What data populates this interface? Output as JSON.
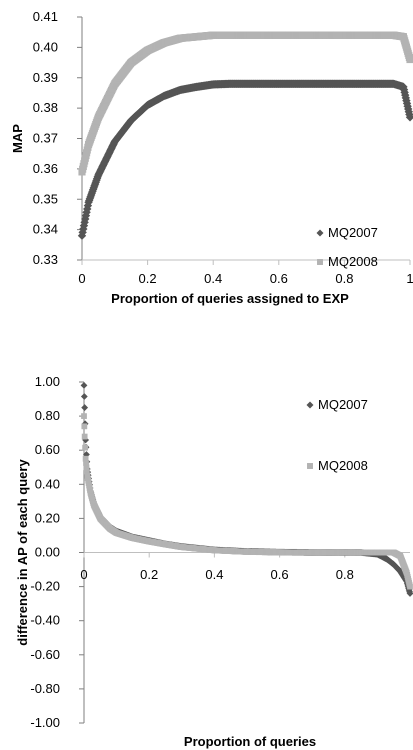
{
  "chart_data": [
    {
      "type": "line",
      "title": "",
      "xlabel": "Proportion of queries assigned to EXP",
      "ylabel": "MAP",
      "xlim": [
        0,
        1
      ],
      "ylim": [
        0.33,
        0.41
      ],
      "xticks": [
        "0",
        "0.2",
        "0.4",
        "0.6",
        "0.8",
        "1"
      ],
      "yticks": [
        "0.33",
        "0.34",
        "0.35",
        "0.36",
        "0.37",
        "0.38",
        "0.39",
        "0.40",
        "0.41"
      ],
      "grid": false,
      "legend_position": "right",
      "x": [
        0,
        0.02,
        0.05,
        0.1,
        0.15,
        0.2,
        0.25,
        0.3,
        0.35,
        0.4,
        0.45,
        0.5,
        0.6,
        0.7,
        0.8,
        0.9,
        0.95,
        0.98,
        1.0
      ],
      "series": [
        {
          "name": "MQ2007",
          "color": "#555555",
          "marker": "diamond",
          "values": [
            0.338,
            0.349,
            0.358,
            0.369,
            0.376,
            0.381,
            0.384,
            0.386,
            0.387,
            0.3878,
            0.388,
            0.388,
            0.388,
            0.388,
            0.388,
            0.388,
            0.388,
            0.387,
            0.377
          ]
        },
        {
          "name": "MQ2008",
          "color": "#b3b3b3",
          "marker": "square",
          "values": [
            0.359,
            0.368,
            0.377,
            0.388,
            0.395,
            0.399,
            0.4015,
            0.403,
            0.4035,
            0.404,
            0.404,
            0.404,
            0.404,
            0.404,
            0.404,
            0.404,
            0.404,
            0.4035,
            0.396
          ]
        }
      ]
    },
    {
      "type": "scatter",
      "title": "",
      "xlabel": "Proportion of queries",
      "ylabel": "difference in AP of each query",
      "xlim": [
        0,
        1
      ],
      "ylim": [
        -1.0,
        1.0
      ],
      "xticks": [
        "0",
        "0.2",
        "0.4",
        "0.6",
        "0.8"
      ],
      "yticks": [
        "1.00",
        "0.80",
        "0.60",
        "0.40",
        "0.20",
        "0.00",
        "-0.20",
        "-0.40",
        "-0.60",
        "-0.80",
        "-1.00"
      ],
      "grid": false,
      "legend_position": "top-right",
      "x": [
        0,
        0.002,
        0.005,
        0.01,
        0.02,
        0.03,
        0.05,
        0.08,
        0.1,
        0.15,
        0.2,
        0.25,
        0.3,
        0.4,
        0.5,
        0.6,
        0.7,
        0.8,
        0.85,
        0.9,
        0.93,
        0.95,
        0.97,
        0.99,
        1.0
      ],
      "series": [
        {
          "name": "MQ2007",
          "color": "#555555",
          "marker": "diamond",
          "values": [
            0.98,
            0.85,
            0.66,
            0.49,
            0.36,
            0.29,
            0.21,
            0.15,
            0.125,
            0.09,
            0.07,
            0.05,
            0.035,
            0.015,
            0.006,
            0.002,
            0.0,
            0.0,
            0.0,
            -0.01,
            -0.04,
            -0.07,
            -0.11,
            -0.17,
            -0.24
          ]
        },
        {
          "name": "MQ2008",
          "color": "#b3b3b3",
          "marker": "square",
          "values": [
            0.8,
            0.68,
            0.55,
            0.45,
            0.35,
            0.28,
            0.2,
            0.14,
            0.115,
            0.085,
            0.065,
            0.048,
            0.032,
            0.013,
            0.004,
            0.001,
            0.0,
            0.0,
            0.0,
            0.0,
            0.0,
            0.0,
            -0.02,
            -0.12,
            -0.2
          ]
        }
      ]
    }
  ]
}
